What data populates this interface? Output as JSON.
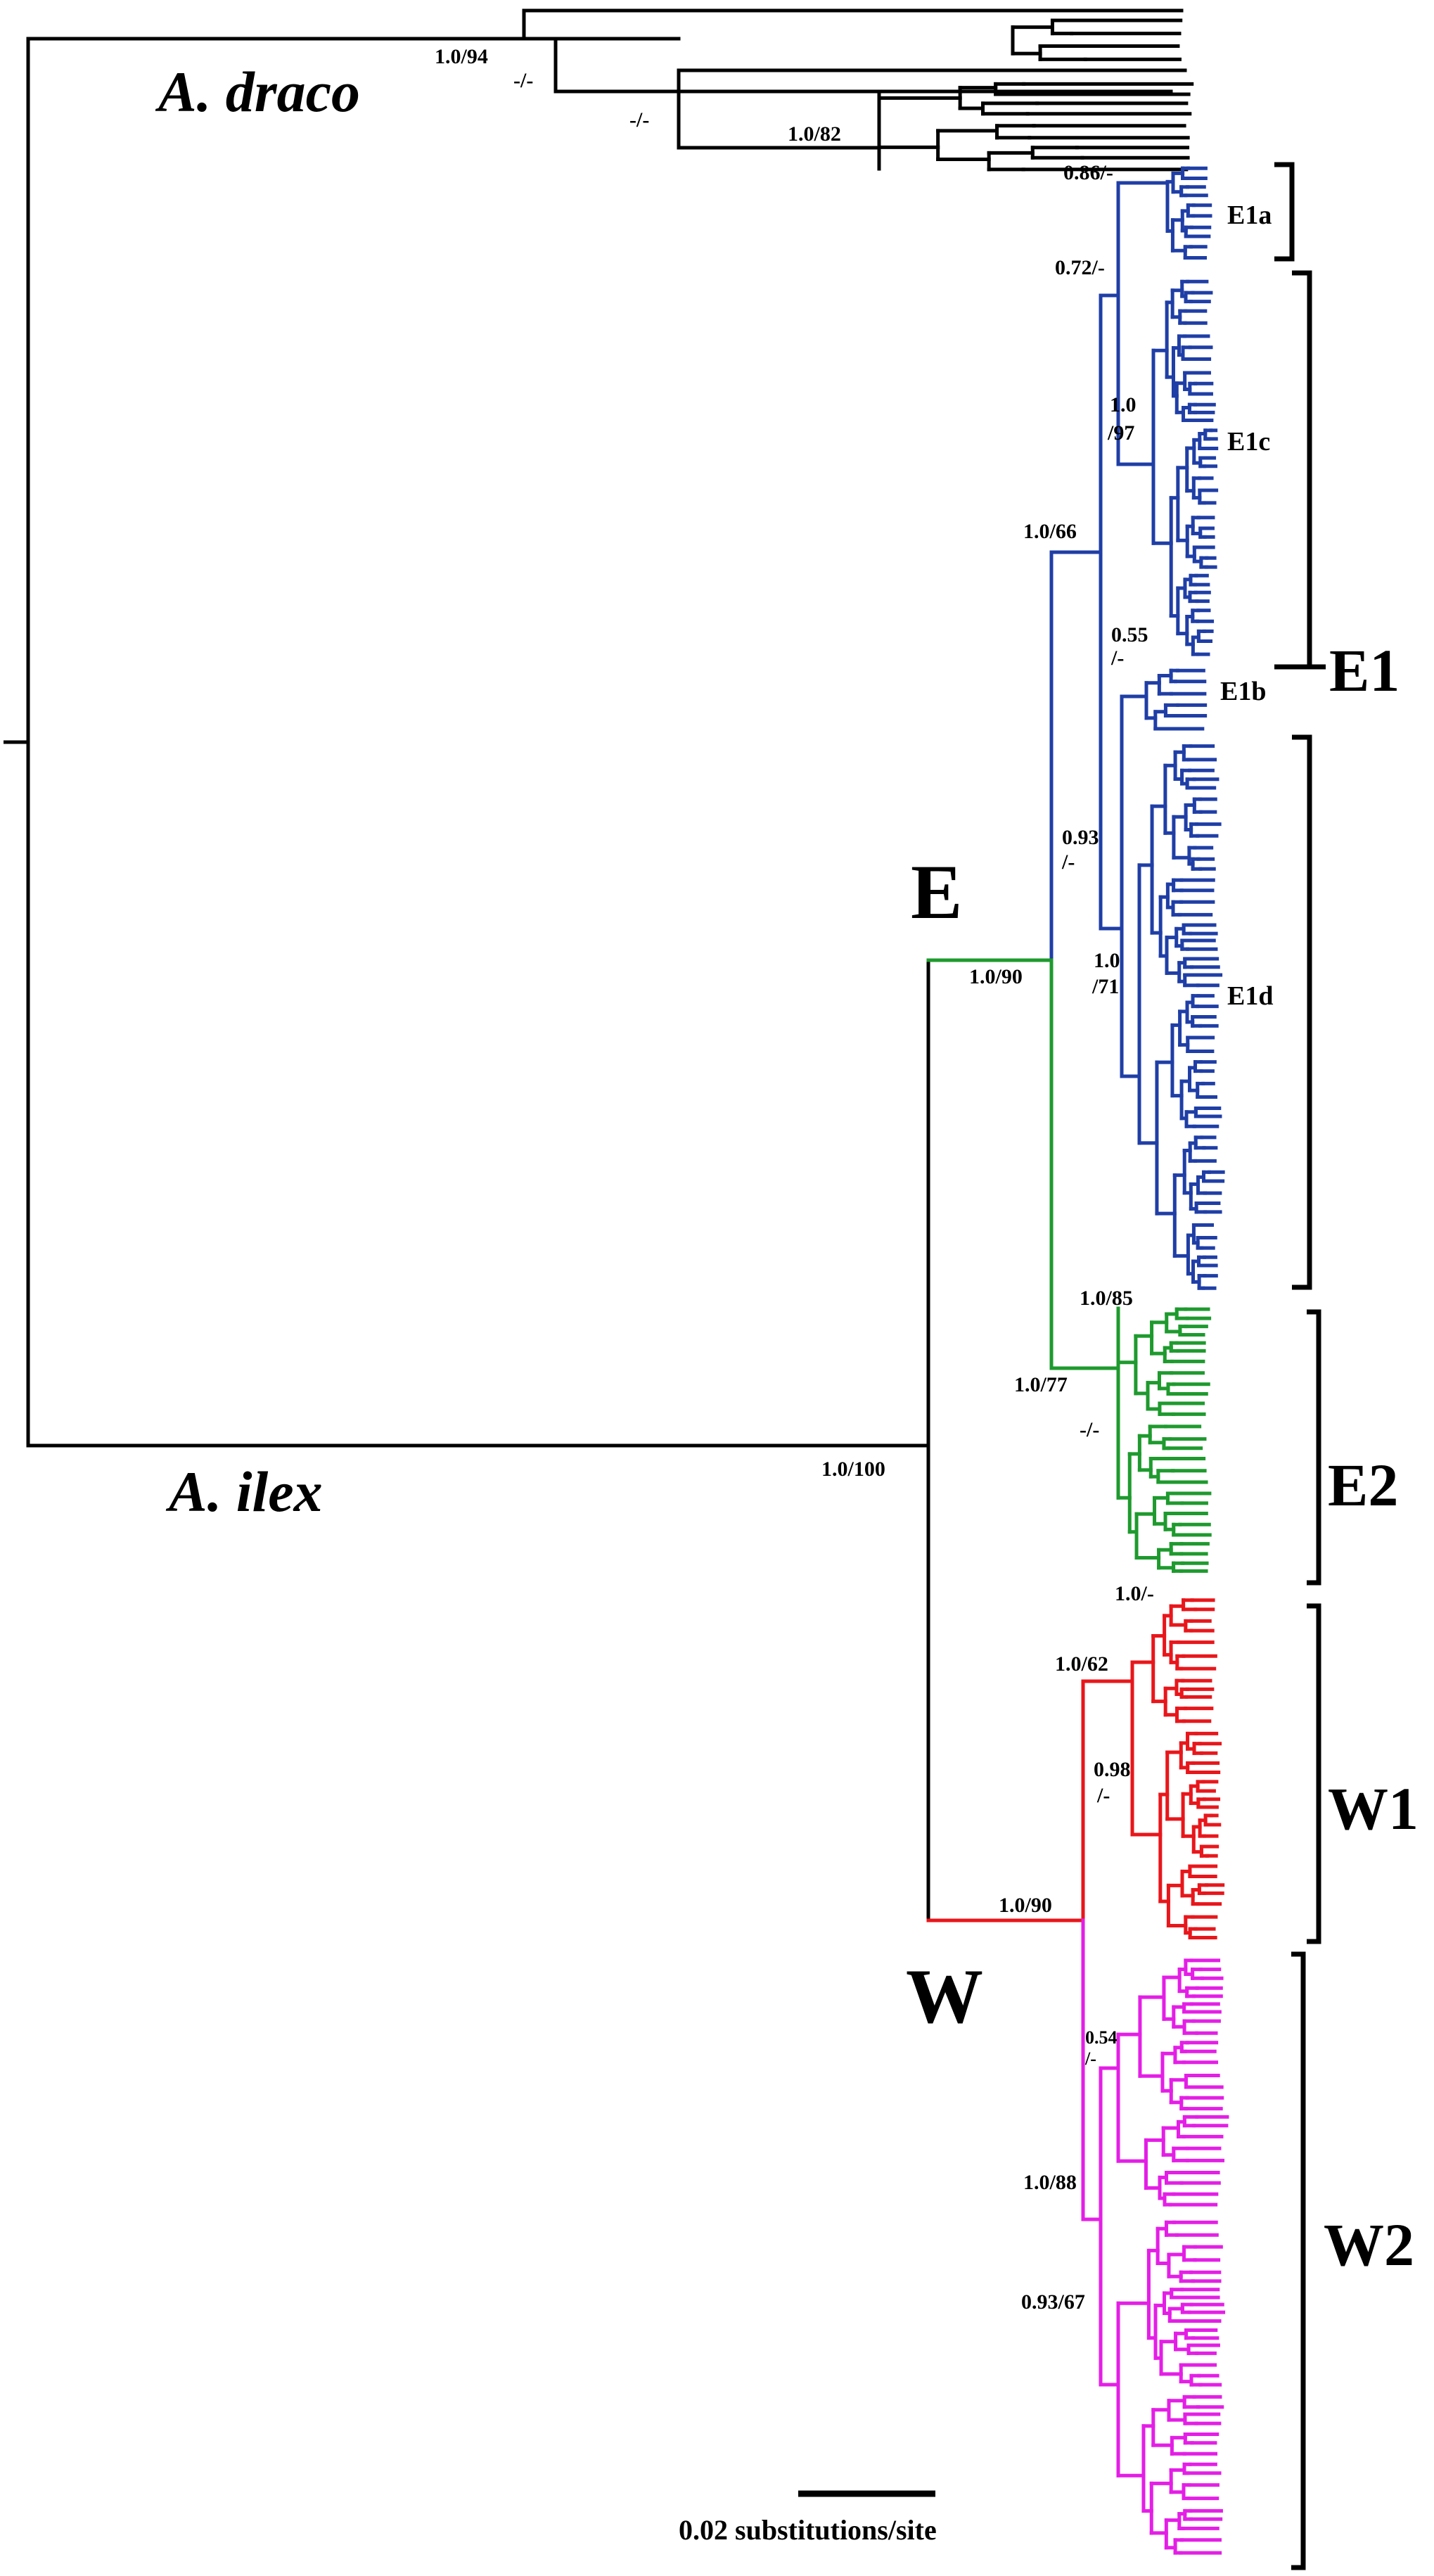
{
  "figure": {
    "taxa": {
      "draco": "A. draco",
      "ilex": "A. ilex"
    },
    "clades": {
      "E": "E",
      "W": "W"
    },
    "groups": {
      "E1": "E1",
      "E2": "E2",
      "W1": "W1",
      "W2": "W2"
    },
    "subgroups": {
      "E1a": "E1a",
      "E1b": "E1b",
      "E1c": "E1c",
      "E1d": "E1d"
    },
    "supports": {
      "draco_1094": "1.0/94",
      "draco_dash1": "-/-",
      "draco_dash2": "-/-",
      "draco_1082": "1.0/82",
      "e_086": "0.86/-",
      "e_072": "0.72/-",
      "e_10_97_a": "1.0",
      "e_10_97_b": "/97",
      "e_1066": "1.0/66",
      "e_055_a": "0.55",
      "e_055_b": "/-",
      "e_093_a": "0.93",
      "e_093_b": "/-",
      "e_10_71_a": "1.0",
      "e_10_71_b": "/71",
      "e_1090": "1.0/90",
      "e2_1085": "1.0/85",
      "e2_1077": "1.0/77",
      "e2_dash": "-/-",
      "root_10100": "1.0/100",
      "w1_10dash": "1.0/-",
      "w1_1062": "1.0/62",
      "w1_098_a": "0.98",
      "w1_098_b": "/-",
      "w_1090": "1.0/90",
      "w2_054_a": "0.54",
      "w2_054_b": "/-",
      "w2_1088": "1.0/88",
      "w2_09367": "0.93/67"
    },
    "scale_label": "0.02 substitutions/site",
    "colors": {
      "outgroup": "#000000",
      "E1": "#1f3ea6",
      "E2": "#1e9a2e",
      "W1": "#e8161b",
      "W2": "#e41ee6",
      "brackets": "#000000"
    }
  }
}
